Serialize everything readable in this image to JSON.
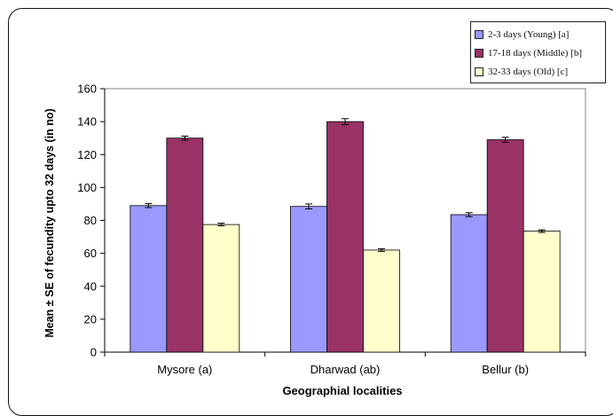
{
  "chart_data": {
    "type": "bar",
    "xlabel": "Geographial localities",
    "ylabel": "Mean ± SE of fecundity upto 32 days (in no)",
    "ylim": [
      0,
      160
    ],
    "yticks": [
      0,
      20,
      40,
      60,
      80,
      100,
      120,
      140,
      160
    ],
    "categories": [
      "Mysore (a)",
      "Dharwad (ab)",
      "Bellur (b)"
    ],
    "series": [
      {
        "name": "2-3 days (Young) [a]",
        "color": "#9999ff",
        "values": [
          89,
          88.5,
          83.5
        ],
        "errors": [
          1.2,
          1.5,
          1.2
        ]
      },
      {
        "name": "17-18 days (Middle) [b]",
        "color": "#993366",
        "values": [
          130,
          140,
          129
        ],
        "errors": [
          1.2,
          1.8,
          1.5
        ]
      },
      {
        "name": "32-33 days (Old) [c]",
        "color": "#ffffcc",
        "values": [
          77.5,
          62,
          73.5
        ],
        "errors": [
          0.8,
          0.8,
          0.8
        ]
      }
    ],
    "grid": false,
    "legend_position": "top-right"
  }
}
